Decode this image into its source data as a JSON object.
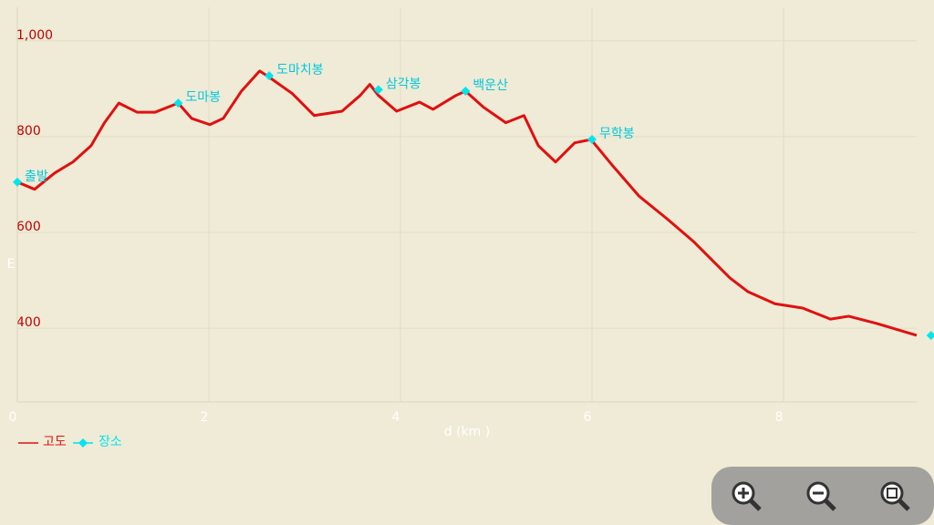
{
  "chart_data": {
    "type": "line",
    "x_label": "d (km )",
    "y_label": "E",
    "xlim": [
      0,
      9.39
    ],
    "ylim": [
      246,
      1070
    ],
    "xticks": [
      0,
      2,
      4,
      6,
      8
    ],
    "yticks": [
      400,
      600,
      800,
      {
        "value": 1000,
        "label": "1,000"
      }
    ],
    "grid": true,
    "series": [
      {
        "name": "고도",
        "color": "#e01010",
        "x": [
          0,
          0.18,
          0.39,
          0.58,
          0.77,
          0.91,
          1.06,
          1.25,
          1.44,
          1.68,
          1.82,
          2.01,
          2.15,
          2.34,
          2.53,
          2.63,
          2.87,
          3.1,
          3.39,
          3.58,
          3.68,
          3.77,
          3.96,
          4.2,
          4.34,
          4.58,
          4.68,
          4.87,
          5.1,
          5.29,
          5.44,
          5.62,
          5.82,
          5.99,
          6.2,
          6.49,
          6.78,
          7.06,
          7.44,
          7.63,
          7.91,
          8.2,
          8.49,
          8.68,
          8.97,
          9.39
        ],
        "values": [
          705,
          690,
          724,
          747,
          781,
          829,
          870,
          851,
          851,
          870,
          838,
          825,
          838,
          895,
          937,
          924,
          890,
          844,
          853,
          886,
          909,
          886,
          853,
          872,
          857,
          886,
          895,
          861,
          829,
          844,
          781,
          747,
          787,
          794,
          743,
          676,
          629,
          581,
          505,
          476,
          451,
          442,
          419,
          425,
          410,
          385
        ]
      },
      {
        "name": "장소",
        "color": "#00e5ee",
        "x": [
          0,
          1.68,
          2.63,
          3.77,
          4.68,
          6.0,
          9.54
        ],
        "values": [
          705,
          870,
          927,
          898,
          895,
          794,
          385
        ],
        "labels": [
          "출발",
          "도마봉",
          "도마치봉",
          "삼각봉",
          "백운산",
          "무학봉",
          null
        ]
      }
    ]
  }
}
